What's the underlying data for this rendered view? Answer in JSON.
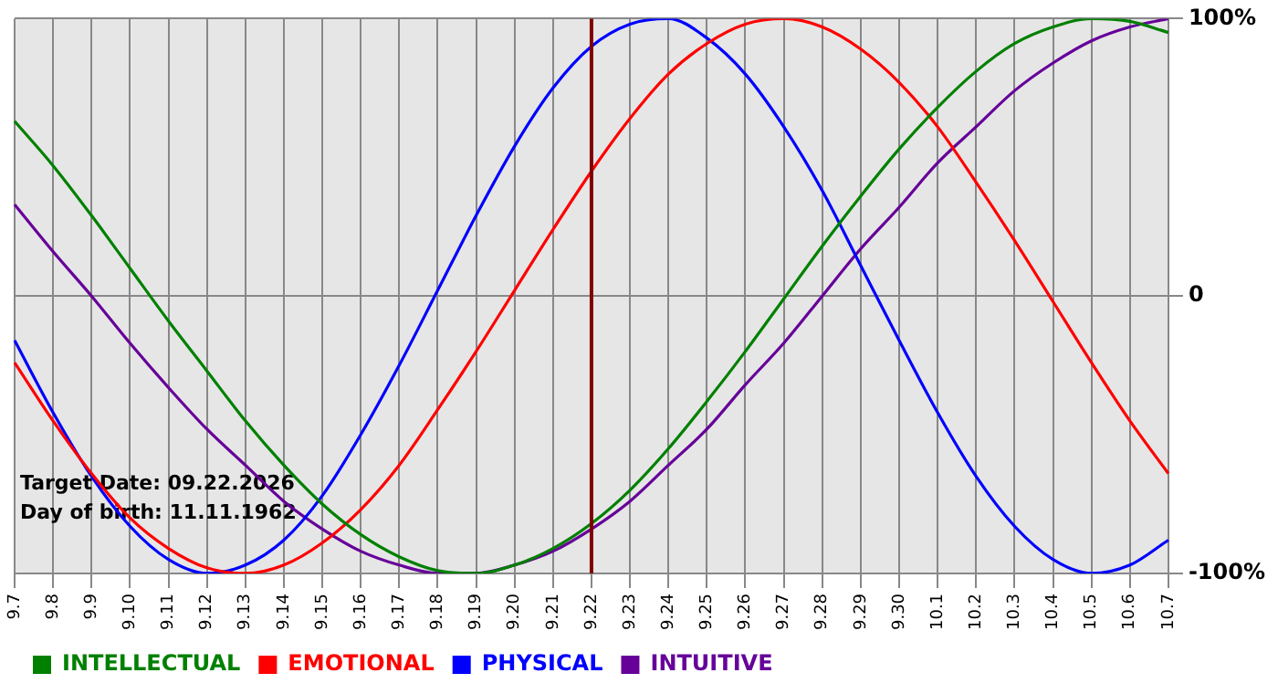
{
  "chart_data": {
    "type": "line",
    "categories": [
      "9.7",
      "9.8",
      "9.9",
      "9.10",
      "9.11",
      "9.12",
      "9.13",
      "9.14",
      "9.15",
      "9.16",
      "9.17",
      "9.18",
      "9.19",
      "9.20",
      "9.21",
      "9.22",
      "9.23",
      "9.24",
      "9.25",
      "9.26",
      "9.27",
      "9.28",
      "9.29",
      "9.30",
      "10.1",
      "10.2",
      "10.3",
      "10.4",
      "10.5",
      "10.6",
      "10.7"
    ],
    "series": [
      {
        "name": "INTELLECTUAL",
        "color": "#008000",
        "values": [
          63,
          47,
          29,
          10,
          -9,
          -27,
          -45,
          -61,
          -75,
          -86,
          -94,
          -99,
          -100,
          -97,
          -91,
          -82,
          -70,
          -55,
          -38,
          -20,
          -1,
          18,
          36,
          53,
          68,
          81,
          91,
          97,
          100,
          99,
          95
        ]
      },
      {
        "name": "EMOTIONAL",
        "color": "#ff0000",
        "values": [
          -24,
          -45,
          -64,
          -80,
          -91,
          -98,
          -100,
          -97,
          -89,
          -77,
          -61,
          -41,
          -20,
          2,
          24,
          45,
          64,
          80,
          91,
          98,
          100,
          97,
          89,
          77,
          61,
          41,
          20,
          -2,
          -24,
          -45,
          -64
        ]
      },
      {
        "name": "PHYSICAL",
        "color": "#0000ff",
        "values": [
          -16,
          -42,
          -65,
          -83,
          -95,
          -100,
          -97,
          -88,
          -72,
          -50,
          -25,
          2,
          29,
          54,
          75,
          90,
          98,
          100,
          93,
          80,
          61,
          38,
          11,
          -16,
          -42,
          -65,
          -83,
          -95,
          -100,
          -97,
          -88
        ]
      },
      {
        "name": "INTUITIVE",
        "color": "#660099",
        "values": [
          33,
          16,
          0,
          -17,
          -33,
          -48,
          -61,
          -74,
          -84,
          -92,
          -97,
          -100,
          -100,
          -97,
          -92,
          -84,
          -74,
          -61,
          -48,
          -32,
          -17,
          0,
          17,
          32,
          48,
          61,
          74,
          84,
          92,
          97,
          100
        ]
      }
    ],
    "ylim": [
      -100,
      100
    ],
    "yticks": [
      {
        "value": 100,
        "label": "100%"
      },
      0,
      {
        "value": -100,
        "label": "-100%"
      }
    ],
    "grid": true,
    "legend": "bottom left",
    "marker": "none",
    "line_style": "solid",
    "ref_lines": [
      {
        "axis": "x",
        "value": "9.22",
        "color": "#800000"
      }
    ],
    "annotations": [
      "Target Date: 09.22.2026",
      "Day of birth: 11.11.1962"
    ]
  }
}
